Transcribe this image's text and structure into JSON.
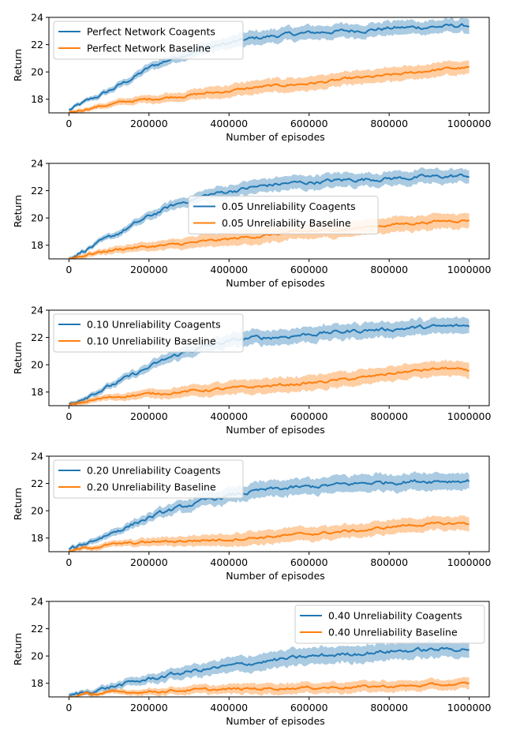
{
  "chart_data": [
    {
      "type": "line",
      "xlabel": "Number of episodes",
      "ylabel": "Return",
      "xlim": [
        -50000,
        1050000
      ],
      "ylim": [
        17,
        24
      ],
      "xticks": [
        0,
        200000,
        400000,
        600000,
        800000,
        1000000
      ],
      "yticks": [
        18,
        20,
        22,
        24
      ],
      "legend_position": "upper-left",
      "series": [
        {
          "name": "Perfect Network Coagents",
          "color": "#1f77b4",
          "x": [
            0,
            50000,
            100000,
            150000,
            200000,
            250000,
            300000,
            350000,
            400000,
            450000,
            500000,
            550000,
            600000,
            650000,
            700000,
            750000,
            800000,
            850000,
            900000,
            950000,
            1000000
          ],
          "values": [
            17.2,
            17.9,
            18.6,
            19.4,
            20.3,
            20.9,
            21.4,
            21.8,
            22.1,
            22.4,
            22.6,
            22.75,
            22.85,
            22.95,
            23.0,
            23.1,
            23.2,
            23.25,
            23.3,
            23.35,
            23.4
          ],
          "band": 0.5
        },
        {
          "name": "Perfect Network Baseline",
          "color": "#ff7f0e",
          "x": [
            0,
            50000,
            100000,
            150000,
            200000,
            250000,
            300000,
            350000,
            400000,
            450000,
            500000,
            550000,
            600000,
            650000,
            700000,
            750000,
            800000,
            850000,
            900000,
            950000,
            1000000
          ],
          "values": [
            17.0,
            17.35,
            17.6,
            17.85,
            18.0,
            18.15,
            18.3,
            18.45,
            18.6,
            18.8,
            18.95,
            19.05,
            19.15,
            19.3,
            19.5,
            19.6,
            19.75,
            19.9,
            20.1,
            20.25,
            20.3
          ],
          "band": 0.5
        }
      ]
    },
    {
      "type": "line",
      "xlabel": "Number of episodes",
      "ylabel": "Return",
      "xlim": [
        -50000,
        1050000
      ],
      "ylim": [
        17,
        24
      ],
      "xticks": [
        0,
        200000,
        400000,
        600000,
        800000,
        1000000
      ],
      "yticks": [
        18,
        20,
        22,
        24
      ],
      "legend_position": "center",
      "series": [
        {
          "name": "0.05 Unreliability Coagents",
          "color": "#1f77b4",
          "x": [
            0,
            50000,
            100000,
            150000,
            200000,
            250000,
            300000,
            350000,
            400000,
            450000,
            500000,
            550000,
            600000,
            650000,
            700000,
            750000,
            800000,
            850000,
            900000,
            950000,
            1000000
          ],
          "values": [
            17.1,
            17.8,
            18.5,
            19.3,
            20.1,
            20.8,
            21.3,
            21.7,
            21.95,
            22.2,
            22.4,
            22.55,
            22.6,
            22.7,
            22.8,
            22.85,
            22.9,
            22.95,
            23.0,
            23.05,
            23.1
          ],
          "band": 0.5
        },
        {
          "name": "0.05 Unreliability Baseline",
          "color": "#ff7f0e",
          "x": [
            0,
            50000,
            100000,
            150000,
            200000,
            250000,
            300000,
            350000,
            400000,
            450000,
            500000,
            550000,
            600000,
            650000,
            700000,
            750000,
            800000,
            850000,
            900000,
            950000,
            1000000
          ],
          "values": [
            17.0,
            17.35,
            17.6,
            17.8,
            17.9,
            18.0,
            18.15,
            18.3,
            18.45,
            18.6,
            18.75,
            18.9,
            19.0,
            19.1,
            19.2,
            19.35,
            19.5,
            19.6,
            19.7,
            19.8,
            19.85
          ],
          "band": 0.55
        }
      ]
    },
    {
      "type": "line",
      "xlabel": "Number of episodes",
      "ylabel": "Return",
      "xlim": [
        -50000,
        1050000
      ],
      "ylim": [
        17,
        24
      ],
      "xticks": [
        0,
        200000,
        400000,
        600000,
        800000,
        1000000
      ],
      "yticks": [
        18,
        20,
        22,
        24
      ],
      "legend_position": "upper-left",
      "series": [
        {
          "name": "0.10 Unreliability Coagents",
          "color": "#1f77b4",
          "x": [
            0,
            50000,
            100000,
            150000,
            200000,
            250000,
            300000,
            350000,
            400000,
            450000,
            500000,
            550000,
            600000,
            650000,
            700000,
            750000,
            800000,
            850000,
            900000,
            950000,
            1000000
          ],
          "values": [
            17.1,
            17.8,
            18.4,
            19.1,
            19.8,
            20.5,
            21.0,
            21.4,
            21.7,
            21.95,
            22.0,
            22.1,
            22.25,
            22.35,
            22.45,
            22.55,
            22.6,
            22.7,
            22.75,
            22.8,
            22.85
          ],
          "band": 0.55
        },
        {
          "name": "0.10 Unreliability Baseline",
          "color": "#ff7f0e",
          "x": [
            0,
            50000,
            100000,
            150000,
            200000,
            250000,
            300000,
            350000,
            400000,
            450000,
            500000,
            550000,
            600000,
            650000,
            700000,
            750000,
            800000,
            850000,
            900000,
            950000,
            1000000
          ],
          "values": [
            17.0,
            17.35,
            17.6,
            17.75,
            17.85,
            17.95,
            18.05,
            18.15,
            18.25,
            18.35,
            18.45,
            18.55,
            18.65,
            18.8,
            18.95,
            19.1,
            19.35,
            19.5,
            19.65,
            19.75,
            19.5
          ],
          "band": 0.55
        }
      ]
    },
    {
      "type": "line",
      "xlabel": "Number of episodes",
      "ylabel": "Return",
      "xlim": [
        -50000,
        1050000
      ],
      "ylim": [
        17,
        24
      ],
      "xticks": [
        0,
        200000,
        400000,
        600000,
        800000,
        1000000
      ],
      "yticks": [
        18,
        20,
        22,
        24
      ],
      "legend_position": "upper-left",
      "series": [
        {
          "name": "0.20 Unreliability Coagents",
          "color": "#1f77b4",
          "x": [
            0,
            50000,
            100000,
            150000,
            200000,
            250000,
            300000,
            350000,
            400000,
            450000,
            500000,
            550000,
            600000,
            650000,
            700000,
            750000,
            800000,
            850000,
            900000,
            950000,
            1000000
          ],
          "values": [
            17.1,
            17.7,
            18.3,
            18.9,
            19.5,
            20.0,
            20.4,
            20.8,
            21.1,
            21.35,
            21.55,
            21.65,
            21.75,
            21.85,
            21.95,
            22.05,
            22.1,
            22.15,
            22.2,
            22.2,
            22.2
          ],
          "band": 0.6
        },
        {
          "name": "0.20 Unreliability Baseline",
          "color": "#ff7f0e",
          "x": [
            0,
            50000,
            100000,
            150000,
            200000,
            250000,
            300000,
            350000,
            400000,
            450000,
            500000,
            550000,
            600000,
            650000,
            700000,
            750000,
            800000,
            850000,
            900000,
            950000,
            1000000
          ],
          "values": [
            17.0,
            17.3,
            17.5,
            17.6,
            17.7,
            17.75,
            17.8,
            17.85,
            17.9,
            18.0,
            18.1,
            18.2,
            18.3,
            18.4,
            18.5,
            18.6,
            18.8,
            18.95,
            19.0,
            19.05,
            19.1
          ],
          "band": 0.5
        }
      ]
    },
    {
      "type": "line",
      "xlabel": "Number of episodes",
      "ylabel": "Return",
      "xlim": [
        -50000,
        1050000
      ],
      "ylim": [
        17,
        24
      ],
      "xticks": [
        0,
        200000,
        400000,
        600000,
        800000,
        1000000
      ],
      "yticks": [
        18,
        20,
        22,
        24
      ],
      "legend_position": "upper-right",
      "series": [
        {
          "name": "0.40 Unreliability Coagents",
          "color": "#1f77b4",
          "x": [
            0,
            50000,
            100000,
            150000,
            200000,
            250000,
            300000,
            350000,
            400000,
            450000,
            500000,
            550000,
            600000,
            650000,
            700000,
            750000,
            800000,
            850000,
            900000,
            950000,
            1000000
          ],
          "values": [
            17.05,
            17.4,
            17.7,
            18.0,
            18.3,
            18.6,
            18.85,
            19.05,
            19.25,
            19.45,
            19.65,
            19.8,
            19.95,
            20.05,
            20.15,
            20.25,
            20.35,
            20.4,
            20.45,
            20.5,
            20.55
          ],
          "band": 0.6
        },
        {
          "name": "0.40 Unreliability Baseline",
          "color": "#ff7f0e",
          "x": [
            0,
            50000,
            100000,
            150000,
            200000,
            250000,
            300000,
            350000,
            400000,
            450000,
            500000,
            550000,
            600000,
            650000,
            700000,
            750000,
            800000,
            850000,
            900000,
            950000,
            1000000
          ],
          "values": [
            17.0,
            17.2,
            17.3,
            17.35,
            17.4,
            17.45,
            17.5,
            17.52,
            17.55,
            17.6,
            17.62,
            17.65,
            17.68,
            17.7,
            17.72,
            17.75,
            17.78,
            17.8,
            17.85,
            17.9,
            17.95
          ],
          "band": 0.4
        }
      ]
    }
  ]
}
